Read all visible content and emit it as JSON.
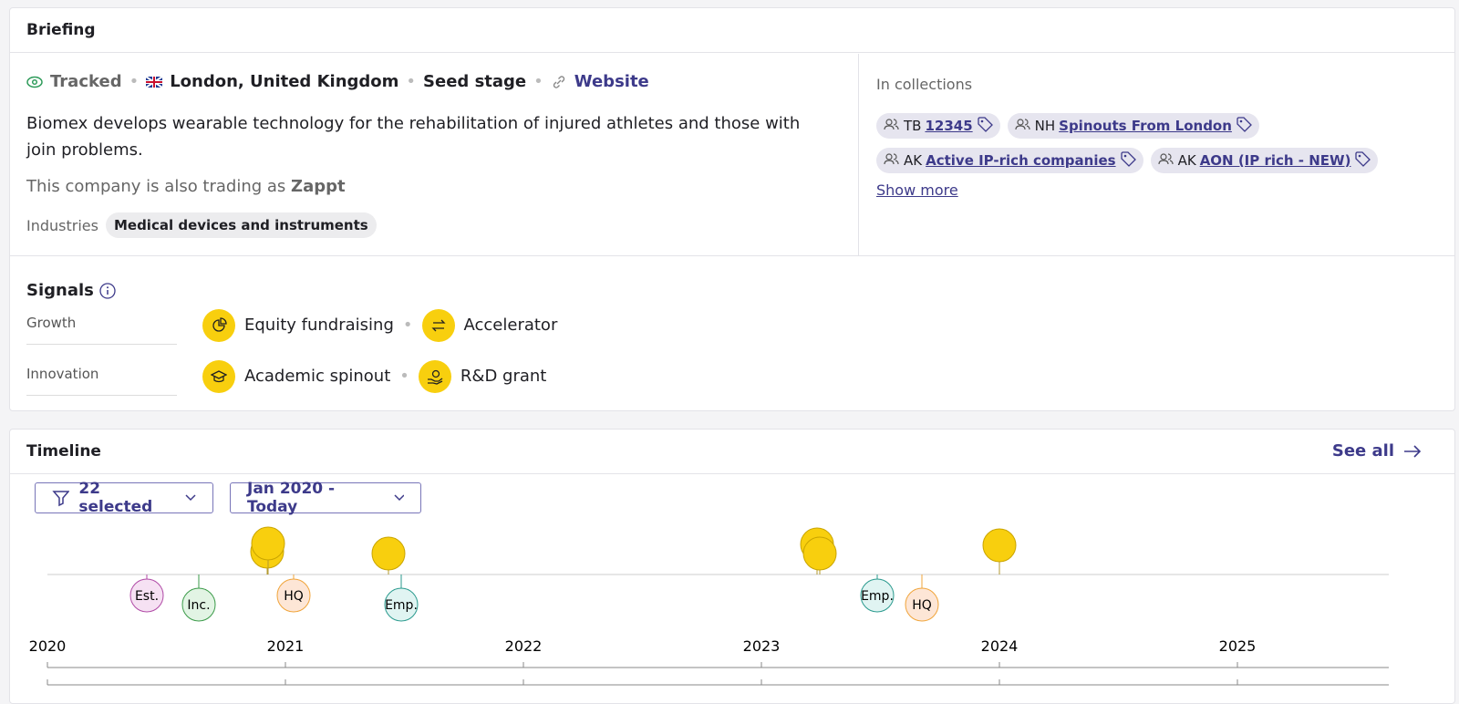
{
  "briefing": {
    "title": "Briefing",
    "status": "Tracked",
    "location": "London, United Kingdom",
    "stage": "Seed stage",
    "website": "Website",
    "description": "Biomex develops wearable technology for the rehabilitation of injured athletes and those with join problems.",
    "trading_prefix": "This company is also trading as",
    "trading_name": "Zappt",
    "industries_label": "Industries",
    "industries": [
      "Medical devices and instruments"
    ]
  },
  "collections": {
    "title": "In collections",
    "items": [
      {
        "initials": "TB",
        "name": "12345"
      },
      {
        "initials": "NH",
        "name": "Spinouts From London"
      },
      {
        "initials": "AK",
        "name": "Active IP-rich companies"
      },
      {
        "initials": "AK",
        "name": "AON (IP rich - NEW)"
      }
    ],
    "show_more": "Show more"
  },
  "signals": {
    "title": "Signals",
    "groups": [
      {
        "label": "Growth",
        "items": [
          "Equity fundraising",
          "Accelerator"
        ]
      },
      {
        "label": "Innovation",
        "items": [
          "Academic spinout",
          "R&D grant"
        ]
      }
    ]
  },
  "timeline": {
    "title": "Timeline",
    "see_all": "See all",
    "filter": "22 selected",
    "range": "Jan 2020 - Today",
    "years": [
      "2020",
      "2021",
      "2022",
      "2023",
      "2024",
      "2025"
    ],
    "events": [
      "Est.",
      "Inc.",
      "HQ",
      "Emp.",
      "Emp.",
      "HQ"
    ]
  }
}
